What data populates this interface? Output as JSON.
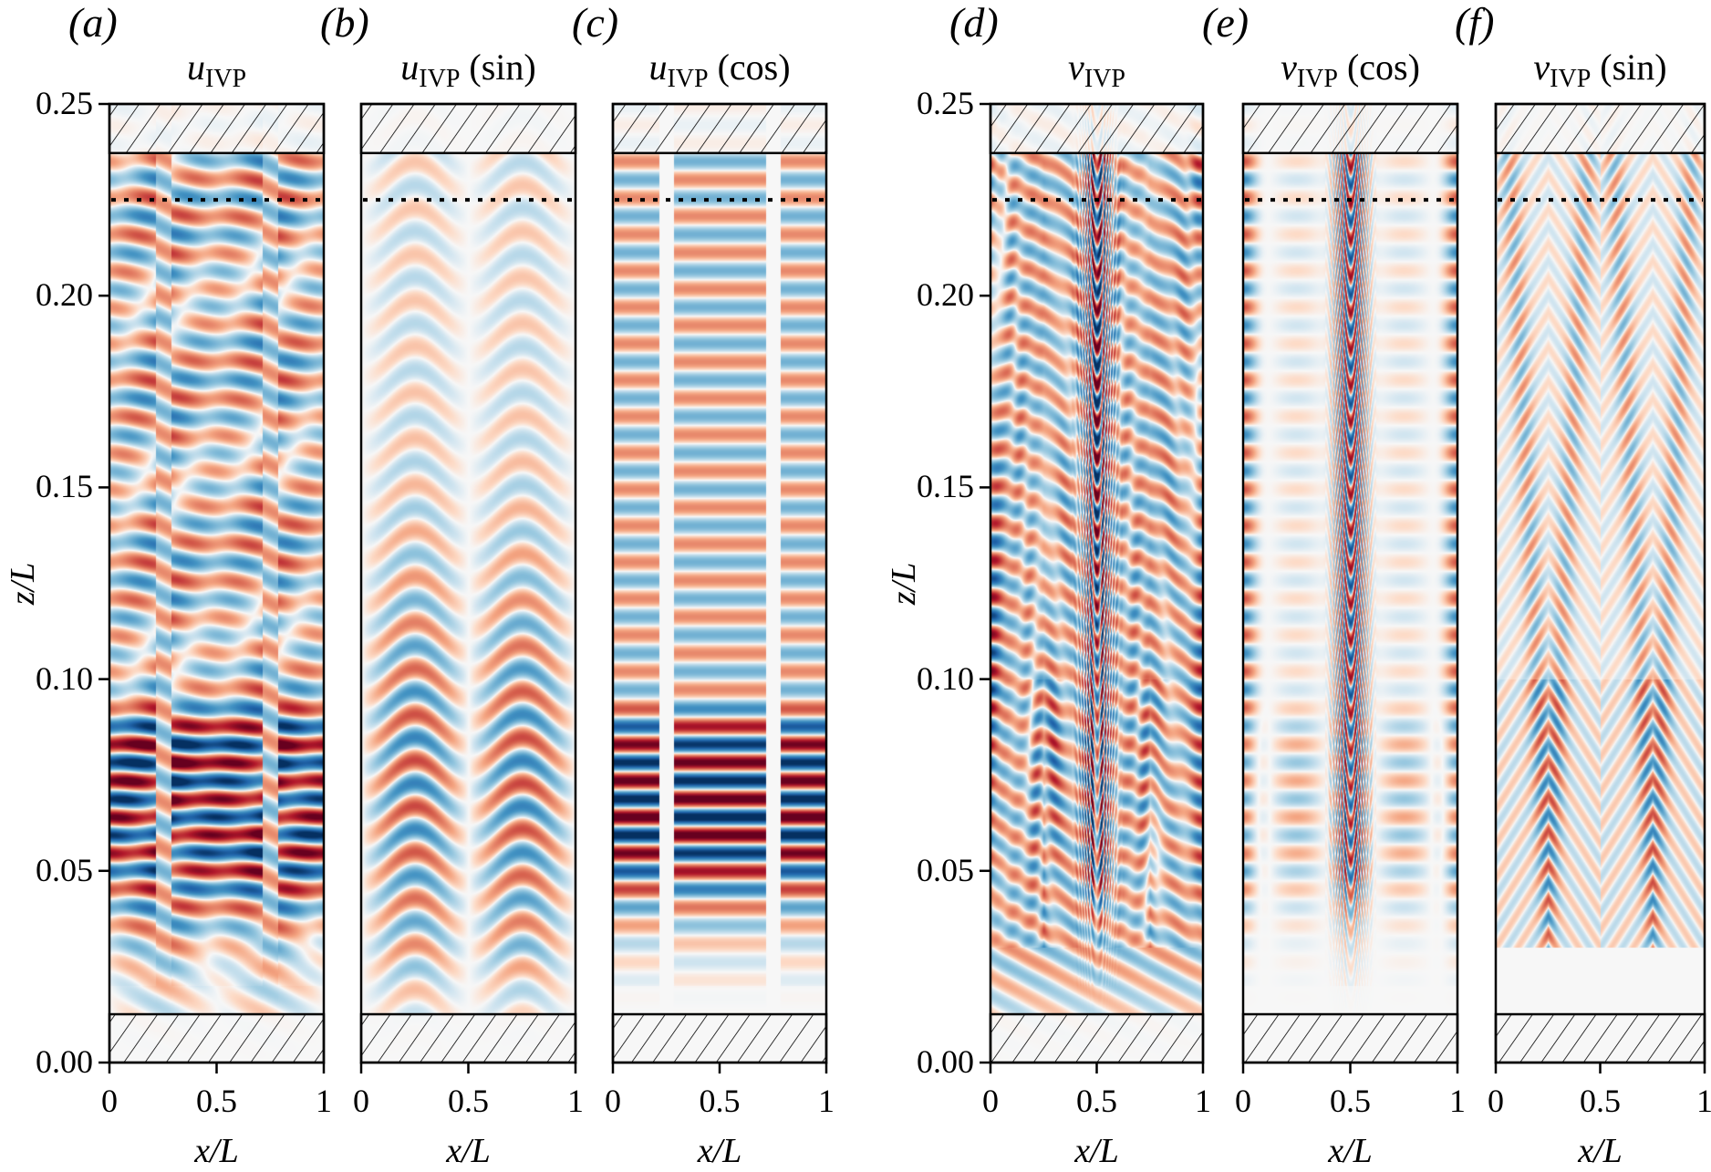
{
  "chart_data": [
    {
      "type": "heatmap",
      "panel_label": "(a)",
      "title_symbol": "u",
      "title_sub": "IVP",
      "title_suffix": "",
      "field": "u_total",
      "xlabel": "x/L",
      "ylabel": "z/L",
      "show_ylabel": true
    },
    {
      "type": "heatmap",
      "panel_label": "(b)",
      "title_symbol": "u",
      "title_sub": "IVP",
      "title_suffix": " (sin)",
      "field": "u_sin",
      "xlabel": "x/L",
      "ylabel": "",
      "show_ylabel": false
    },
    {
      "type": "heatmap",
      "panel_label": "(c)",
      "title_symbol": "u",
      "title_sub": "IVP",
      "title_suffix": " (cos)",
      "field": "u_cos",
      "xlabel": "x/L",
      "ylabel": "",
      "show_ylabel": false
    },
    {
      "type": "heatmap",
      "panel_label": "(d)",
      "title_symbol": "v",
      "title_sub": "IVP",
      "title_suffix": "",
      "field": "v_total",
      "xlabel": "x/L",
      "ylabel": "z/L",
      "show_ylabel": true
    },
    {
      "type": "heatmap",
      "panel_label": "(e)",
      "title_symbol": "v",
      "title_sub": "IVP",
      "title_suffix": " (cos)",
      "field": "v_cos",
      "xlabel": "x/L",
      "ylabel": "",
      "show_ylabel": false
    },
    {
      "type": "heatmap",
      "panel_label": "(f)",
      "title_symbol": "v",
      "title_sub": "IVP",
      "title_suffix": " (sin)",
      "field": "v_sin",
      "xlabel": "x/L",
      "ylabel": "",
      "show_ylabel": false
    }
  ],
  "axes": {
    "xlim": [
      0,
      1
    ],
    "ylim": [
      0,
      0.25
    ],
    "xticks": [
      0,
      0.5,
      1
    ],
    "xtick_labels": [
      "0",
      "0.5",
      "1"
    ],
    "yticks": [
      0,
      0.05,
      0.1,
      0.15,
      0.2,
      0.25
    ],
    "ytick_labels": [
      "0.00",
      "0.05",
      "0.10",
      "0.15",
      "0.20",
      "0.25"
    ]
  },
  "annotations": {
    "upper_hatched_region_z": [
      0.2372,
      0.25
    ],
    "lower_hatched_region_z": [
      0,
      0.0126
    ],
    "dotted_line_z": 0.225
  },
  "colormap": {
    "name": "RdBu_r",
    "negative": "#053061",
    "zero": "#f7f7f7",
    "positive": "#67001f"
  }
}
